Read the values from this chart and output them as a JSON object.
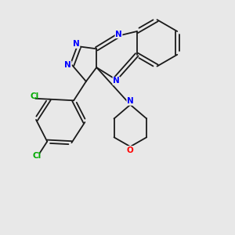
{
  "background_color": "#e8e8e8",
  "bond_color": "#1a1a1a",
  "nitrogen_color": "#0000ff",
  "oxygen_color": "#ff0000",
  "chlorine_color": "#00aa00",
  "figsize": [
    3.0,
    3.0
  ],
  "dpi": 100,
  "xlim": [
    0,
    10
  ],
  "ylim": [
    0,
    10
  ]
}
